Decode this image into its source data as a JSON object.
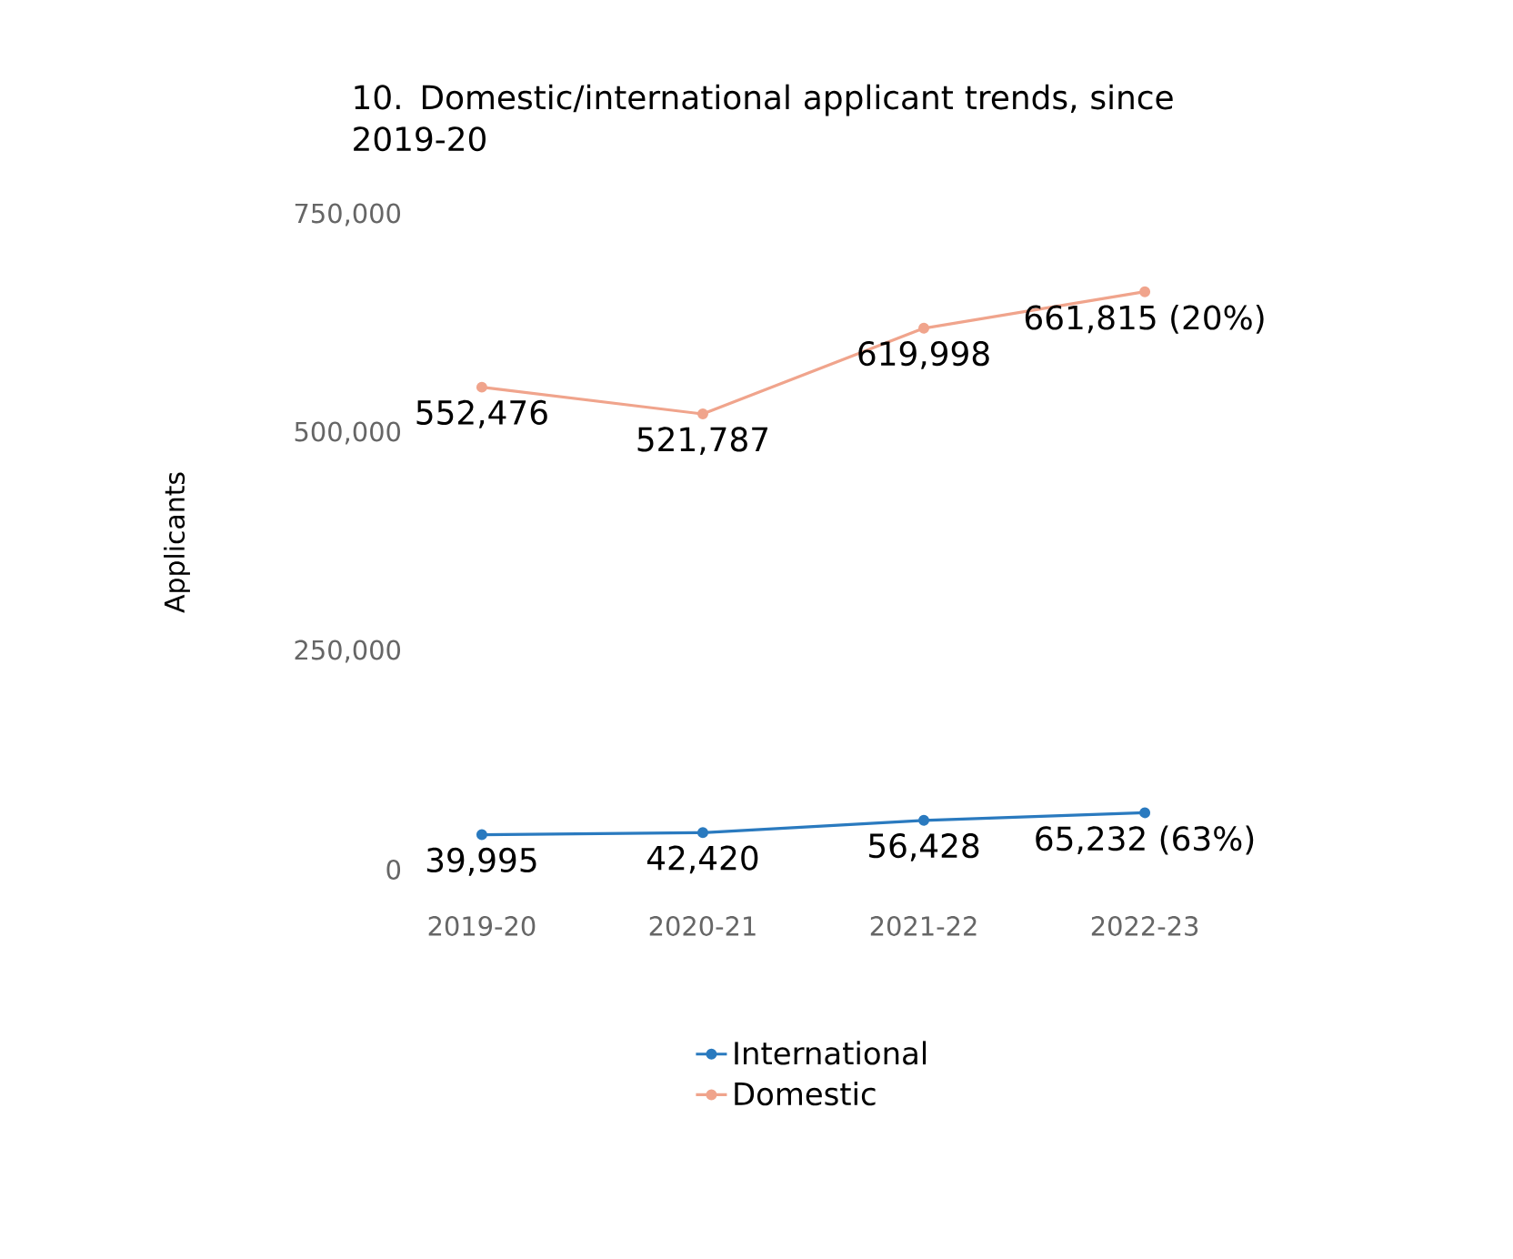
{
  "chart_data": {
    "type": "line",
    "title": "10. Domestic/international applicant trends, since 2019-20",
    "ylabel": "Applicants",
    "categories": [
      "2019-20",
      "2020-21",
      "2021-22",
      "2022-23"
    ],
    "series": [
      {
        "name": "International",
        "color": "#2a7abf",
        "values": [
          39995,
          42420,
          56428,
          65232
        ],
        "value_labels": [
          "39,995",
          "42,420",
          "56,428",
          "65,232 (63%)"
        ]
      },
      {
        "name": "Domestic",
        "color": "#f0a48c",
        "values": [
          552476,
          521787,
          619998,
          661815
        ],
        "value_labels": [
          "552,476",
          "521,787",
          "619,998",
          "661,815 (20%)"
        ]
      }
    ],
    "ylim": [
      0,
      750000
    ],
    "yticks": [
      0,
      {
        "value": 250000,
        "label": "250,000"
      },
      {
        "value": 500000,
        "label": "500,000"
      },
      {
        "value": 750000,
        "label": "750,000"
      }
    ],
    "grid": false,
    "legend": "bottom",
    "marker": "circle",
    "line_style": "solid"
  }
}
